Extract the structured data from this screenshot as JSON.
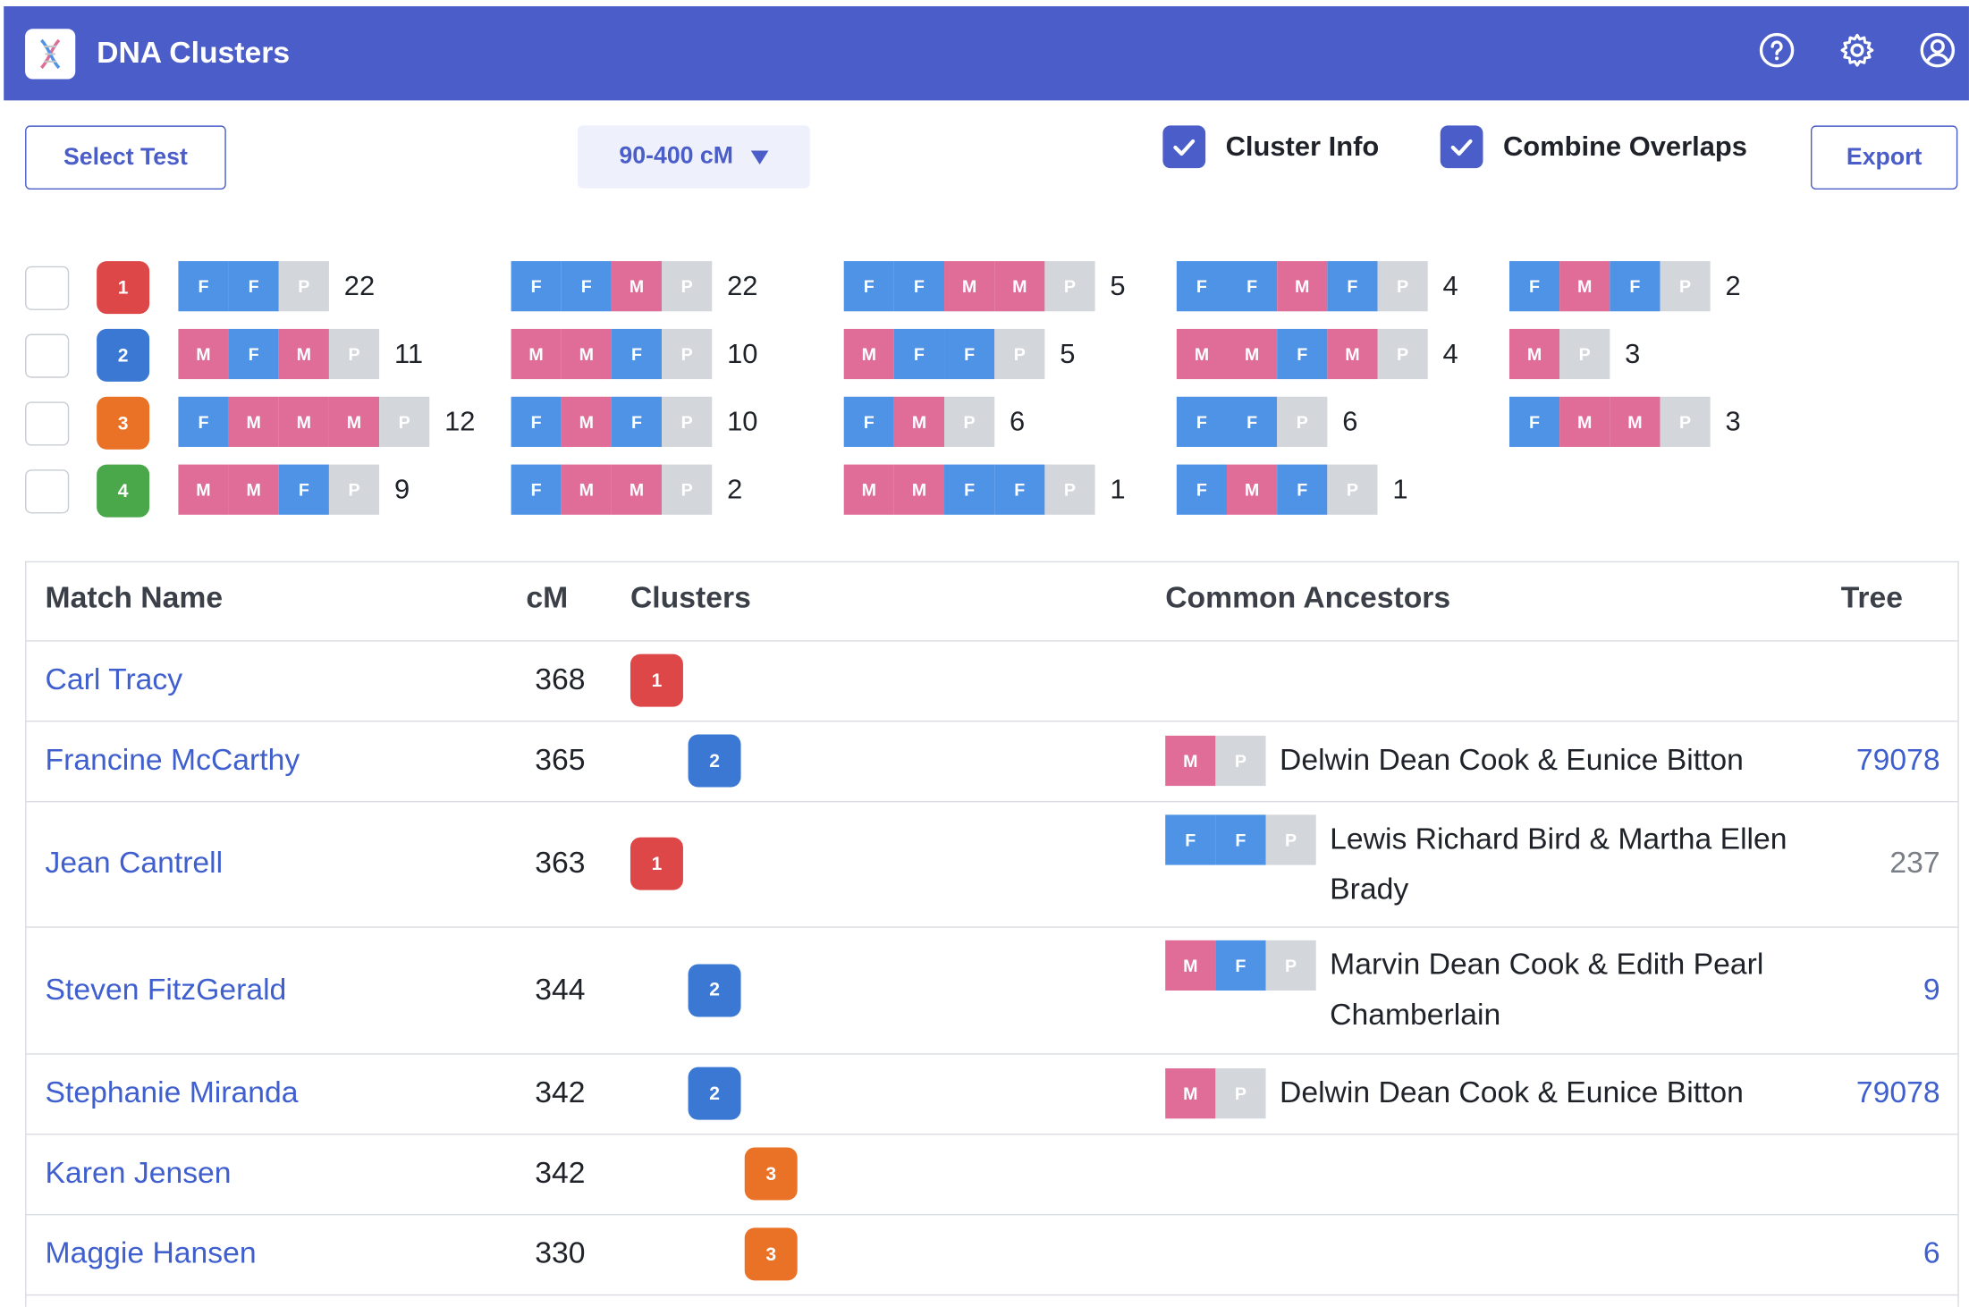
{
  "app": {
    "title": "DNA Clusters"
  },
  "header_icons": [
    "help-circle-icon",
    "gear-icon",
    "user-circle-icon"
  ],
  "toolbar": {
    "select_test_label": "Select Test",
    "range_label": "90-400 cM",
    "cluster_info_label": "Cluster Info",
    "cluster_info_checked": true,
    "combine_overlaps_label": "Combine Overlaps",
    "combine_overlaps_checked": true,
    "export_label": "Export"
  },
  "clusters": [
    {
      "id": "1",
      "color": "#dd4747",
      "patterns": [
        {
          "segs": [
            "F",
            "F",
            "P"
          ],
          "count": "22"
        },
        {
          "segs": [
            "F",
            "F",
            "M",
            "P"
          ],
          "count": "22"
        },
        {
          "segs": [
            "F",
            "F",
            "M",
            "M",
            "P"
          ],
          "count": "5"
        },
        {
          "segs": [
            "F",
            "F",
            "M",
            "F",
            "P"
          ],
          "count": "4"
        },
        {
          "segs": [
            "F",
            "M",
            "F",
            "P"
          ],
          "count": "2"
        }
      ]
    },
    {
      "id": "2",
      "color": "#3a78d4",
      "patterns": [
        {
          "segs": [
            "M",
            "F",
            "M",
            "P"
          ],
          "count": "11"
        },
        {
          "segs": [
            "M",
            "M",
            "F",
            "P"
          ],
          "count": "10"
        },
        {
          "segs": [
            "M",
            "F",
            "F",
            "P"
          ],
          "count": "5"
        },
        {
          "segs": [
            "M",
            "M",
            "F",
            "M",
            "P"
          ],
          "count": "4"
        },
        {
          "segs": [
            "M",
            "P"
          ],
          "count": "3"
        }
      ]
    },
    {
      "id": "3",
      "color": "#ea7226",
      "patterns": [
        {
          "segs": [
            "F",
            "M",
            "M",
            "M",
            "P"
          ],
          "count": "12"
        },
        {
          "segs": [
            "F",
            "M",
            "F",
            "P"
          ],
          "count": "10"
        },
        {
          "segs": [
            "F",
            "M",
            "P"
          ],
          "count": "6"
        },
        {
          "segs": [
            "F",
            "F",
            "P"
          ],
          "count": "6"
        },
        {
          "segs": [
            "F",
            "M",
            "M",
            "P"
          ],
          "count": "3"
        }
      ]
    },
    {
      "id": "4",
      "color": "#4aa84b",
      "patterns": [
        {
          "segs": [
            "M",
            "M",
            "F",
            "P"
          ],
          "count": "9"
        },
        {
          "segs": [
            "F",
            "M",
            "M",
            "P"
          ],
          "count": "2"
        },
        {
          "segs": [
            "M",
            "M",
            "F",
            "F",
            "P"
          ],
          "count": "1"
        },
        {
          "segs": [
            "F",
            "M",
            "F",
            "P"
          ],
          "count": "1"
        }
      ]
    }
  ],
  "table": {
    "headers": {
      "name": "Match Name",
      "cm": "cM",
      "clusters": "Clusters",
      "ancestors": "Common Ancestors",
      "tree": "Tree"
    },
    "rows": [
      {
        "name": "Carl Tracy",
        "cm": "368",
        "cluster": "1",
        "anc_segs": [],
        "ancestors": "",
        "tree": "",
        "tree_link": false
      },
      {
        "name": "Francine McCarthy",
        "cm": "365",
        "cluster": "2",
        "anc_segs": [
          "M",
          "P"
        ],
        "ancestors": "Delwin Dean Cook & Eunice Bitton",
        "tree": "79078",
        "tree_link": true
      },
      {
        "name": "Jean Cantrell",
        "cm": "363",
        "cluster": "1",
        "anc_segs": [
          "F",
          "F",
          "P"
        ],
        "ancestors": "Lewis Richard Bird & Martha Ellen Brady",
        "tree": "237",
        "tree_link": false
      },
      {
        "name": "Steven FitzGerald",
        "cm": "344",
        "cluster": "2",
        "anc_segs": [
          "M",
          "F",
          "P"
        ],
        "ancestors": "Marvin Dean Cook & Edith Pearl Chamberlain",
        "tree": "9",
        "tree_link": true
      },
      {
        "name": "Stephanie Miranda",
        "cm": "342",
        "cluster": "2",
        "anc_segs": [
          "M",
          "P"
        ],
        "ancestors": "Delwin Dean Cook & Eunice Bitton",
        "tree": "79078",
        "tree_link": true
      },
      {
        "name": "Karen Jensen",
        "cm": "342",
        "cluster": "3",
        "anc_segs": [],
        "ancestors": "",
        "tree": "",
        "tree_link": false
      },
      {
        "name": "Maggie Hansen",
        "cm": "330",
        "cluster": "3",
        "anc_segs": [],
        "ancestors": "",
        "tree": "6",
        "tree_link": true
      }
    ]
  }
}
